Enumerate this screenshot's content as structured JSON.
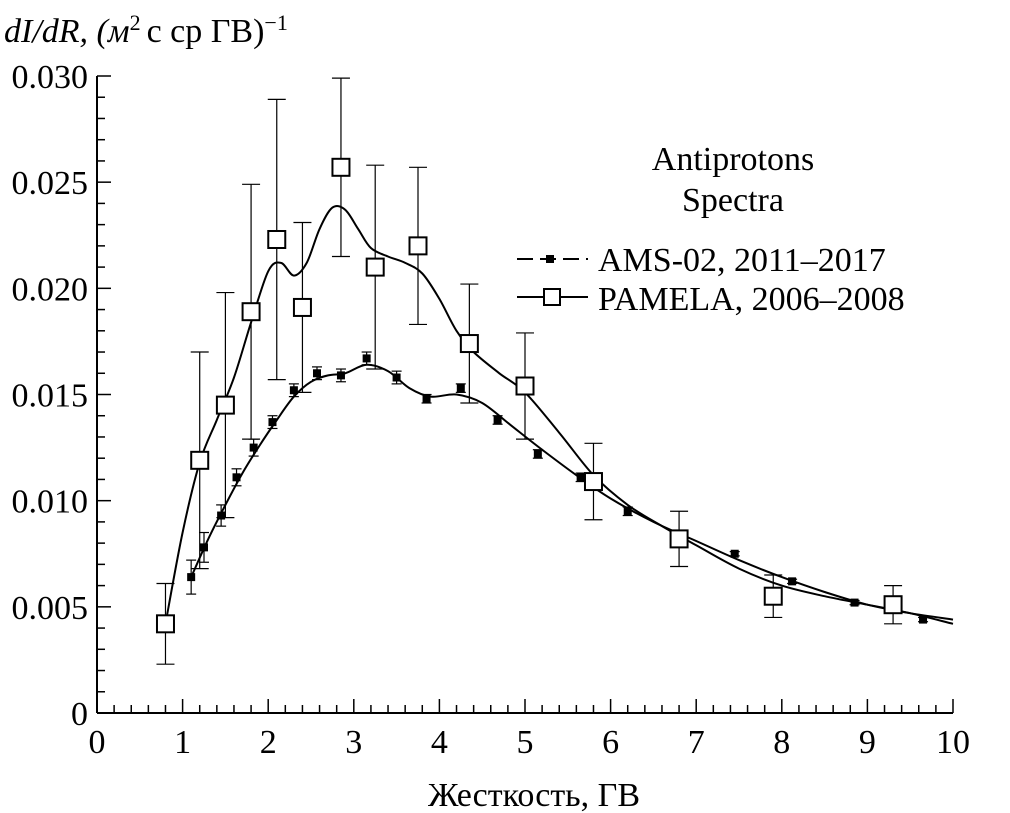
{
  "chart_data": {
    "type": "scatter",
    "title": "Antiprotons Spectra",
    "title_lines": [
      "Antiprotons",
      "Spectra"
    ],
    "ylabel": {
      "main": "dI/dR, (м",
      "sup": "2",
      "rest": "с ср ГВ)",
      "exp": "−1"
    },
    "xlabel": "Жесткость, ГВ",
    "xlim": [
      0,
      10
    ],
    "ylim": [
      0,
      0.03
    ],
    "xticks": [
      "0",
      "1",
      "2",
      "3",
      "4",
      "5",
      "6",
      "7",
      "8",
      "9",
      "10"
    ],
    "yticks": [
      "0",
      "0.005",
      "0.010",
      "0.015",
      "0.020",
      "0.025",
      "0.030"
    ],
    "series": [
      {
        "name": "AMS-02, 2011–2017",
        "marker": "filled-square-small",
        "x": [
          1.1,
          1.25,
          1.45,
          1.63,
          1.83,
          2.05,
          2.3,
          2.57,
          2.85,
          3.15,
          3.5,
          3.85,
          4.25,
          4.68,
          5.15,
          5.65,
          6.2,
          6.8,
          7.45,
          8.12,
          8.85,
          9.65
        ],
        "y": [
          0.0064,
          0.0078,
          0.0093,
          0.0111,
          0.0125,
          0.0137,
          0.0152,
          0.016,
          0.0159,
          0.0167,
          0.0158,
          0.0148,
          0.0153,
          0.0138,
          0.0122,
          0.0111,
          0.0095,
          0.0083,
          0.0075,
          0.0062,
          0.0052,
          0.0044
        ],
        "err": [
          0.0008,
          0.0007,
          0.0005,
          0.0004,
          0.0004,
          0.0003,
          0.0003,
          0.0003,
          0.0003,
          0.0003,
          0.0003,
          0.0002,
          0.0002,
          0.0002,
          0.0002,
          0.0002,
          0.0002,
          0.0001,
          0.0001,
          0.0001,
          0.0001,
          0.0001
        ],
        "curve_x": [
          1.1,
          1.3,
          1.5,
          1.7,
          1.9,
          2.1,
          2.3,
          2.5,
          2.7,
          2.9,
          3.15,
          3.4,
          3.65,
          3.9,
          4.2,
          4.5,
          4.85,
          5.2,
          5.6,
          6.0,
          6.5,
          7.0,
          7.5,
          8.0,
          8.5,
          9.0,
          9.5,
          10.0
        ],
        "curve_y": [
          0.0064,
          0.0082,
          0.0098,
          0.0113,
          0.0126,
          0.0138,
          0.0149,
          0.0156,
          0.0159,
          0.016,
          0.0164,
          0.0161,
          0.0153,
          0.0149,
          0.015,
          0.0146,
          0.0135,
          0.0124,
          0.0112,
          0.0101,
          0.009,
          0.0081,
          0.0072,
          0.0064,
          0.0057,
          0.0051,
          0.0047,
          0.0044
        ]
      },
      {
        "name": "PAMELA, 2006–2008",
        "marker": "open-square",
        "x": [
          0.8,
          1.2,
          1.5,
          1.8,
          2.1,
          2.4,
          2.85,
          3.25,
          3.75,
          4.35,
          5.0,
          5.8,
          6.8,
          7.9,
          9.3
        ],
        "y": [
          0.0042,
          0.0119,
          0.0145,
          0.0189,
          0.0223,
          0.0191,
          0.0257,
          0.021,
          0.022,
          0.0174,
          0.0154,
          0.0109,
          0.0082,
          0.0055,
          0.0051
        ],
        "err": [
          0.0019,
          0.0051,
          0.0053,
          0.006,
          0.0066,
          0.004,
          0.0042,
          0.0048,
          0.0037,
          0.0028,
          0.0025,
          0.0018,
          0.0013,
          0.001,
          0.0009
        ],
        "curve_x": [
          0.8,
          1.0,
          1.2,
          1.4,
          1.6,
          1.8,
          2.0,
          2.15,
          2.3,
          2.45,
          2.6,
          2.75,
          2.9,
          3.05,
          3.2,
          3.4,
          3.6,
          3.8,
          4.0,
          4.2,
          4.4,
          4.7,
          5.0,
          5.4,
          5.8,
          6.2,
          6.6,
          7.0,
          7.5,
          8.0,
          8.5,
          9.0,
          9.5,
          10.0
        ],
        "curve_y": [
          0.0042,
          0.0085,
          0.0118,
          0.0138,
          0.0158,
          0.0184,
          0.0208,
          0.0212,
          0.0206,
          0.0212,
          0.0228,
          0.0238,
          0.0237,
          0.0228,
          0.0219,
          0.0215,
          0.0212,
          0.0207,
          0.0195,
          0.018,
          0.017,
          0.016,
          0.0151,
          0.0132,
          0.0112,
          0.0098,
          0.0088,
          0.0079,
          0.0068,
          0.006,
          0.0055,
          0.0051,
          0.0047,
          0.0042
        ]
      }
    ]
  }
}
